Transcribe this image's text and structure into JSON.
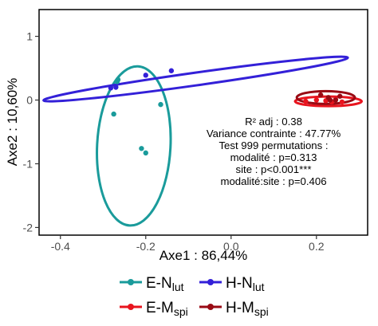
{
  "chart_data": {
    "type": "scatter",
    "xlabel": "Axe1 : 86,44%",
    "ylabel": "Axe2 : 10,60%",
    "xlim": [
      -0.45,
      0.32
    ],
    "ylim": [
      -2.12,
      1.42
    ],
    "x_ticks": [
      {
        "value": -0.4,
        "label": "-0.4"
      },
      {
        "value": -0.2,
        "label": "-0.2"
      },
      {
        "value": 0.0,
        "label": "0.0"
      },
      {
        "value": 0.2,
        "label": "0.2"
      }
    ],
    "y_ticks": [
      {
        "value": 1,
        "label": "1"
      },
      {
        "value": 0,
        "label": "0"
      },
      {
        "value": -1,
        "label": "-1"
      },
      {
        "value": -2,
        "label": "-2"
      }
    ],
    "grid": false,
    "series": [
      {
        "name": "E-N",
        "sub": "lut",
        "color": "#1a9b9b",
        "points": [
          [
            -0.265,
            0.32
          ],
          [
            -0.267,
            0.29
          ],
          [
            -0.275,
            -0.22
          ],
          [
            -0.165,
            -0.07
          ],
          [
            -0.21,
            -0.76
          ],
          [
            -0.2,
            -0.83
          ]
        ],
        "ellipse": {
          "cx": -0.228,
          "cy": -0.72,
          "rx": 0.086,
          "ry": 1.25,
          "angle_deg": -3.0
        }
      },
      {
        "name": "H-N",
        "sub": "lut",
        "color": "#3320d8",
        "points": [
          [
            -0.282,
            0.19
          ],
          [
            -0.27,
            0.2
          ],
          [
            -0.2,
            0.39
          ],
          [
            -0.14,
            0.46
          ]
        ],
        "ellipse": {
          "cx": -0.083,
          "cy": 0.33,
          "rx": 0.36,
          "ry": 0.1,
          "angle_deg": 8.0
        }
      },
      {
        "name": "E-M",
        "sub": "spi",
        "color": "#e8141e",
        "points": [
          [
            0.175,
            -0.02
          ],
          [
            0.2,
            0.0
          ],
          [
            0.222,
            -0.01
          ],
          [
            0.236,
            -0.03
          ],
          [
            0.245,
            0.01
          ],
          [
            0.26,
            -0.03
          ]
        ],
        "ellipse": {
          "cx": 0.228,
          "cy": -0.02,
          "rx": 0.078,
          "ry": 0.075,
          "angle_deg": 0.0
        }
      },
      {
        "name": "H-M",
        "sub": "spi",
        "color": "#990a14",
        "points": [
          [
            0.21,
            0.08
          ],
          [
            0.228,
            0.04
          ],
          [
            0.245,
            0.0
          ],
          [
            0.255,
            0.06
          ],
          [
            0.232,
            0.0
          ]
        ],
        "ellipse": {
          "cx": 0.222,
          "cy": 0.04,
          "rx": 0.068,
          "ry": 0.1,
          "angle_deg": 0.0
        }
      }
    ],
    "annotations": [
      "R² adj : 0.38",
      "Variance contrainte : 47.77%",
      "Test 999 permutations :",
      "modalité : p=0.313",
      "site : p<0.001***",
      "modalité:site : p=0.406"
    ],
    "legend_position": "bottom"
  }
}
